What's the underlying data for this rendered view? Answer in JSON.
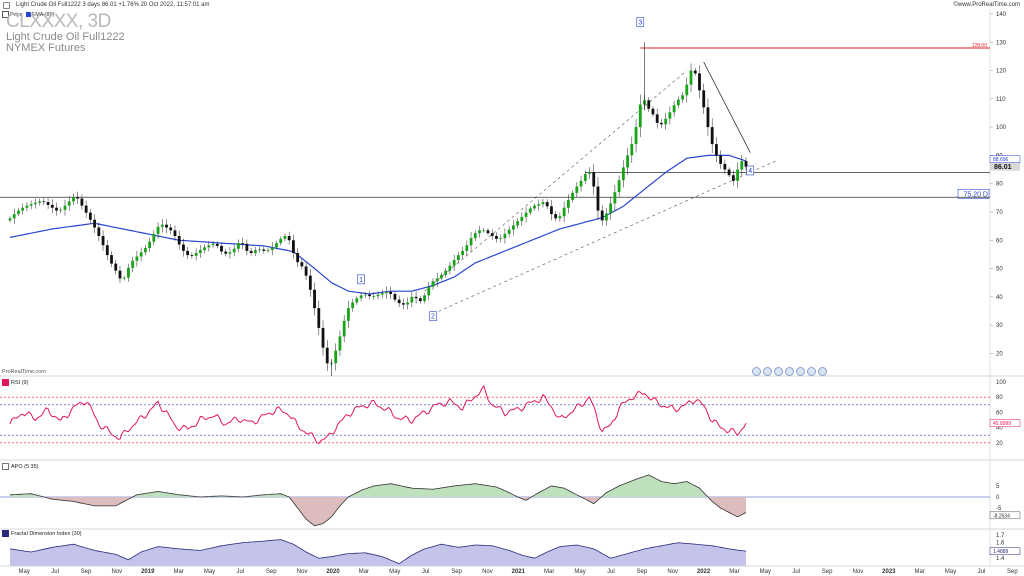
{
  "header": {
    "instrument_line": "Light Crude Oil Full1222 3 days 86.01 +1.76% 20 Oct 2022, 11:57:01 am",
    "site": "©www.ProRealTime.com"
  },
  "legend": {
    "price_label": "Price",
    "ema_label": "EMA (89)"
  },
  "symbol": {
    "ticker": "CLXXXX, 3D",
    "name": "Light Crude Oil Full1222",
    "exchange": "NYMEX Futures"
  },
  "watermark": "ProRealTime.com",
  "colors": {
    "up": "#19a319",
    "down": "#111111",
    "ema": "#2946d1",
    "resistance": "#e02020",
    "rsi": "#e0185c",
    "apo": "#333333",
    "apo_pos": "#bfe0bd",
    "apo_neg": "#dcbcbc",
    "fdi": "#2a2a7a",
    "fdi_fill": "#c4c4ea",
    "box": "#2946d1"
  },
  "chart_data": [
    {
      "type": "candlestick",
      "title": "Light Crude Oil Full1222",
      "x_axis": {
        "ticks": [
          "May",
          "Jul",
          "Sep",
          "Nov",
          "2019",
          "Mar",
          "May",
          "Jul",
          "Sep",
          "Nov",
          "2020",
          "Mar",
          "May",
          "Jul",
          "Sep",
          "Nov",
          "2021",
          "Mar",
          "May",
          "Jul",
          "Sep",
          "Nov",
          "2022",
          "Mar",
          "May",
          "Jul",
          "Sep",
          "Nov",
          "2023",
          "Mar",
          "May",
          "Jul",
          "Sep"
        ],
        "bold_ticks": [
          "2019",
          "2020",
          "2021",
          "2022",
          "2023"
        ]
      },
      "y_axis": {
        "ticks": [
          140,
          130,
          120,
          110,
          100,
          90,
          80,
          70,
          60,
          50,
          40,
          30,
          20
        ],
        "ylim": [
          12,
          140
        ]
      },
      "path": [
        [
          0,
          67
        ],
        [
          2,
          70
        ],
        [
          4,
          72
        ],
        [
          6,
          73
        ],
        [
          8,
          74
        ],
        [
          10,
          72
        ],
        [
          12,
          70
        ],
        [
          14,
          73
        ],
        [
          16,
          76
        ],
        [
          18,
          71
        ],
        [
          20,
          66
        ],
        [
          22,
          60
        ],
        [
          24,
          53
        ],
        [
          26,
          48
        ],
        [
          27,
          45
        ],
        [
          29,
          52
        ],
        [
          31,
          55
        ],
        [
          33,
          58
        ],
        [
          34,
          61
        ],
        [
          36,
          66
        ],
        [
          38,
          64
        ],
        [
          39,
          63
        ],
        [
          41,
          57
        ],
        [
          43,
          54
        ],
        [
          45,
          56
        ],
        [
          47,
          58
        ],
        [
          49,
          59
        ],
        [
          51,
          55
        ],
        [
          53,
          56
        ],
        [
          55,
          60
        ],
        [
          57,
          55
        ],
        [
          59,
          57
        ],
        [
          61,
          56
        ],
        [
          63,
          58
        ],
        [
          64,
          60
        ],
        [
          66,
          62
        ],
        [
          67,
          58
        ],
        [
          68,
          53
        ],
        [
          70,
          50
        ],
        [
          72,
          40
        ],
        [
          73,
          32
        ],
        [
          74,
          26
        ],
        [
          75,
          18
        ],
        [
          76,
          15
        ],
        [
          77,
          18
        ],
        [
          78,
          24
        ],
        [
          79,
          28
        ],
        [
          80,
          35
        ],
        [
          82,
          39
        ],
        [
          84,
          41
        ],
        [
          86,
          40
        ],
        [
          88,
          41
        ],
        [
          90,
          42
        ],
        [
          92,
          38
        ],
        [
          94,
          37
        ],
        [
          96,
          41
        ],
        [
          97,
          38
        ],
        [
          98,
          39
        ],
        [
          100,
          45
        ],
        [
          102,
          47
        ],
        [
          104,
          50
        ],
        [
          106,
          54
        ],
        [
          108,
          57
        ],
        [
          110,
          62
        ],
        [
          112,
          64
        ],
        [
          114,
          62
        ],
        [
          116,
          60
        ],
        [
          118,
          63
        ],
        [
          120,
          66
        ],
        [
          122,
          69
        ],
        [
          124,
          72
        ],
        [
          126,
          73
        ],
        [
          127,
          74
        ],
        [
          128,
          70
        ],
        [
          130,
          67
        ],
        [
          132,
          73
        ],
        [
          134,
          78
        ],
        [
          136,
          82
        ],
        [
          137,
          85
        ],
        [
          138,
          83
        ],
        [
          139,
          75
        ],
        [
          140,
          66
        ],
        [
          141,
          68
        ],
        [
          142,
          71
        ],
        [
          144,
          79
        ],
        [
          146,
          88
        ],
        [
          148,
          96
        ],
        [
          150,
          112
        ],
        [
          151,
          107
        ],
        [
          152,
          106
        ],
        [
          154,
          100
        ],
        [
          156,
          104
        ],
        [
          158,
          109
        ],
        [
          160,
          112
        ],
        [
          161,
          118
        ],
        [
          162,
          122
        ],
        [
          163,
          116
        ],
        [
          164,
          110
        ],
        [
          165,
          104
        ],
        [
          166,
          96
        ],
        [
          167,
          92
        ],
        [
          168,
          88
        ],
        [
          169,
          86
        ],
        [
          170,
          84
        ],
        [
          171,
          82
        ],
        [
          172,
          80
        ],
        [
          173,
          90
        ],
        [
          174,
          86
        ]
      ],
      "ema_89": [
        [
          0,
          61
        ],
        [
          10,
          64
        ],
        [
          20,
          66
        ],
        [
          30,
          63
        ],
        [
          40,
          60
        ],
        [
          50,
          59
        ],
        [
          60,
          58
        ],
        [
          67,
          56
        ],
        [
          72,
          50
        ],
        [
          76,
          45
        ],
        [
          80,
          42
        ],
        [
          85,
          41
        ],
        [
          90,
          42
        ],
        [
          95,
          42
        ],
        [
          100,
          44
        ],
        [
          105,
          47
        ],
        [
          110,
          52
        ],
        [
          115,
          55
        ],
        [
          120,
          58
        ],
        [
          125,
          61
        ],
        [
          130,
          64
        ],
        [
          135,
          66
        ],
        [
          140,
          68
        ],
        [
          145,
          72
        ],
        [
          150,
          78
        ],
        [
          155,
          84
        ],
        [
          160,
          89
        ],
        [
          165,
          90
        ],
        [
          170,
          90
        ],
        [
          174,
          88
        ]
      ],
      "annotations": {
        "resistance_value": "128.00",
        "support_label": "75.20 D",
        "last_price": "86.01",
        "ema_value": "88.696",
        "markers": [
          "1",
          "2",
          "3",
          "4"
        ]
      }
    },
    {
      "type": "line",
      "title": "RSI (9)",
      "y_axis": {
        "ticks": [
          100,
          80,
          60,
          40,
          20
        ],
        "ylim": [
          0,
          100
        ]
      },
      "reference_lines": [
        80,
        70,
        30,
        20
      ],
      "last_value": "45.8999",
      "path": [
        [
          0,
          45
        ],
        [
          3,
          60
        ],
        [
          6,
          52
        ],
        [
          9,
          63
        ],
        [
          12,
          48
        ],
        [
          15,
          66
        ],
        [
          18,
          76
        ],
        [
          21,
          45
        ],
        [
          24,
          32
        ],
        [
          26,
          26
        ],
        [
          28,
          38
        ],
        [
          31,
          52
        ],
        [
          33,
          62
        ],
        [
          35,
          72
        ],
        [
          37,
          60
        ],
        [
          39,
          42
        ],
        [
          42,
          38
        ],
        [
          45,
          50
        ],
        [
          48,
          56
        ],
        [
          51,
          45
        ],
        [
          54,
          52
        ],
        [
          57,
          46
        ],
        [
          60,
          55
        ],
        [
          63,
          64
        ],
        [
          66,
          58
        ],
        [
          68,
          42
        ],
        [
          71,
          30
        ],
        [
          73,
          22
        ],
        [
          75,
          26
        ],
        [
          77,
          40
        ],
        [
          80,
          58
        ],
        [
          83,
          68
        ],
        [
          86,
          72
        ],
        [
          89,
          64
        ],
        [
          92,
          52
        ],
        [
          95,
          50
        ],
        [
          98,
          60
        ],
        [
          101,
          70
        ],
        [
          104,
          74
        ],
        [
          107,
          66
        ],
        [
          110,
          82
        ],
        [
          112,
          90
        ],
        [
          114,
          70
        ],
        [
          117,
          60
        ],
        [
          120,
          64
        ],
        [
          123,
          72
        ],
        [
          126,
          80
        ],
        [
          128,
          68
        ],
        [
          130,
          50
        ],
        [
          132,
          58
        ],
        [
          135,
          70
        ],
        [
          137,
          80
        ],
        [
          139,
          50
        ],
        [
          140,
          36
        ],
        [
          142,
          42
        ],
        [
          144,
          66
        ],
        [
          147,
          80
        ],
        [
          150,
          86
        ],
        [
          152,
          76
        ],
        [
          154,
          70
        ],
        [
          157,
          64
        ],
        [
          160,
          70
        ],
        [
          162,
          78
        ],
        [
          164,
          68
        ],
        [
          166,
          50
        ],
        [
          168,
          40
        ],
        [
          170,
          36
        ],
        [
          172,
          32
        ],
        [
          174,
          46
        ]
      ]
    },
    {
      "type": "area",
      "title": "APO (5 35)",
      "y_axis": {
        "ticks": [
          "5",
          "0",
          "-5"
        ],
        "ylim": [
          -14,
          14
        ]
      },
      "last_value": "-8.2634",
      "path": [
        [
          0,
          1
        ],
        [
          5,
          1.5
        ],
        [
          10,
          -1
        ],
        [
          15,
          -2
        ],
        [
          20,
          -4
        ],
        [
          25,
          -4
        ],
        [
          30,
          1
        ],
        [
          35,
          2.5
        ],
        [
          40,
          1
        ],
        [
          45,
          0
        ],
        [
          50,
          0.5
        ],
        [
          55,
          0
        ],
        [
          60,
          1
        ],
        [
          64,
          1.5
        ],
        [
          66,
          0
        ],
        [
          68,
          -5
        ],
        [
          70,
          -10
        ],
        [
          72,
          -13
        ],
        [
          74,
          -12
        ],
        [
          76,
          -9
        ],
        [
          78,
          -4
        ],
        [
          80,
          0
        ],
        [
          83,
          3
        ],
        [
          86,
          5
        ],
        [
          90,
          6
        ],
        [
          95,
          4
        ],
        [
          100,
          3.5
        ],
        [
          105,
          5
        ],
        [
          110,
          6
        ],
        [
          115,
          4.5
        ],
        [
          118,
          2
        ],
        [
          120,
          0
        ],
        [
          122,
          -1.5
        ],
        [
          125,
          2
        ],
        [
          128,
          5
        ],
        [
          131,
          4
        ],
        [
          134,
          1
        ],
        [
          136,
          -1
        ],
        [
          138,
          -3
        ],
        [
          141,
          2
        ],
        [
          144,
          5
        ],
        [
          148,
          8
        ],
        [
          151,
          10
        ],
        [
          154,
          7
        ],
        [
          157,
          6
        ],
        [
          160,
          7
        ],
        [
          163,
          4
        ],
        [
          166,
          -2
        ],
        [
          168,
          -5
        ],
        [
          170,
          -7
        ],
        [
          172,
          -9
        ],
        [
          174,
          -7
        ]
      ]
    },
    {
      "type": "area",
      "title": "Fractal Dimension Index (30)",
      "y_axis": {
        "ticks": [
          "1.7",
          "1.6",
          "1.4"
        ],
        "ylim": [
          1.3,
          1.75
        ]
      },
      "last_value": "1.4889",
      "path": [
        [
          0,
          1.52
        ],
        [
          5,
          1.48
        ],
        [
          10,
          1.54
        ],
        [
          15,
          1.58
        ],
        [
          20,
          1.5
        ],
        [
          25,
          1.45
        ],
        [
          28,
          1.38
        ],
        [
          31,
          1.48
        ],
        [
          35,
          1.55
        ],
        [
          40,
          1.52
        ],
        [
          45,
          1.5
        ],
        [
          50,
          1.56
        ],
        [
          55,
          1.6
        ],
        [
          60,
          1.62
        ],
        [
          64,
          1.64
        ],
        [
          67,
          1.58
        ],
        [
          70,
          1.48
        ],
        [
          73,
          1.4
        ],
        [
          76,
          1.42
        ],
        [
          80,
          1.46
        ],
        [
          84,
          1.47
        ],
        [
          88,
          1.42
        ],
        [
          92,
          1.33
        ],
        [
          95,
          1.44
        ],
        [
          98,
          1.52
        ],
        [
          102,
          1.58
        ],
        [
          106,
          1.54
        ],
        [
          110,
          1.57
        ],
        [
          114,
          1.56
        ],
        [
          118,
          1.5
        ],
        [
          121,
          1.44
        ],
        [
          124,
          1.4
        ],
        [
          127,
          1.48
        ],
        [
          130,
          1.55
        ],
        [
          134,
          1.57
        ],
        [
          138,
          1.52
        ],
        [
          142,
          1.4
        ],
        [
          146,
          1.46
        ],
        [
          150,
          1.52
        ],
        [
          154,
          1.56
        ],
        [
          158,
          1.6
        ],
        [
          162,
          1.58
        ],
        [
          166,
          1.56
        ],
        [
          170,
          1.52
        ],
        [
          174,
          1.49
        ]
      ]
    }
  ]
}
